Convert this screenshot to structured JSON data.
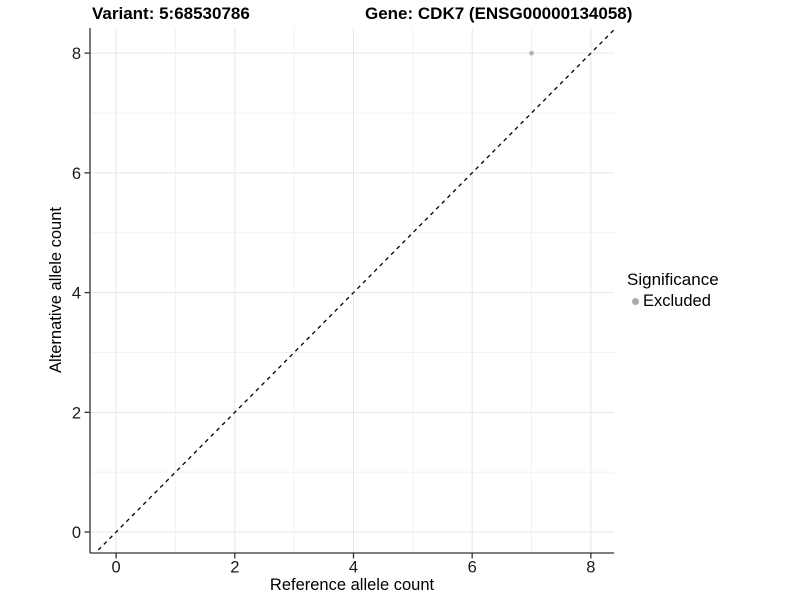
{
  "title": {
    "left": "Variant: 5:68530786",
    "right": "Gene: CDK7 (ENSG00000134058)"
  },
  "axes": {
    "x_label": "Reference allele count",
    "y_label": "Alternative allele count"
  },
  "legend": {
    "title": "Significance",
    "entries": [
      {
        "label": "Excluded",
        "color": "#ababab"
      }
    ]
  },
  "chart_data": {
    "type": "scatter",
    "title": "Variant: 5:68530786    Gene: CDK7 (ENSG00000134058)",
    "xlabel": "Reference allele count",
    "ylabel": "Alternative allele count",
    "xlim": [
      -0.44,
      8.39
    ],
    "ylim": [
      -0.35,
      8.42
    ],
    "xticks": [
      0,
      2,
      4,
      6,
      8
    ],
    "yticks": [
      0,
      2,
      4,
      6,
      8
    ],
    "minor_xticks": [
      1,
      3,
      5,
      7
    ],
    "minor_yticks": [
      1,
      3,
      5,
      7
    ],
    "grid": true,
    "legend_position": "right",
    "series": [
      {
        "name": "Excluded",
        "color": "#b5b5b5",
        "points": [
          {
            "x": 7,
            "y": 8
          }
        ]
      }
    ],
    "reference_line": {
      "type": "abline",
      "slope": 1,
      "intercept": 0,
      "style": "dashed",
      "color": "#000000"
    },
    "colors": {
      "grid_major": "#e7e7e7",
      "grid_minor": "#f2f2f2",
      "axis_line": "#333333",
      "tick_text": "#1a1a1a",
      "point": "#b5b5b5",
      "background": "#ffffff"
    }
  }
}
